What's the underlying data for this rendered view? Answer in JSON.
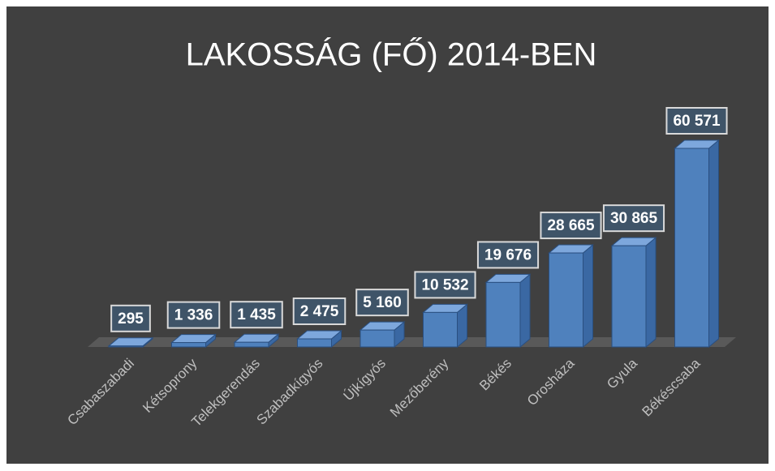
{
  "chart_data": {
    "type": "bar3d",
    "title": "LAKOSSÁG (FŐ) 2014-BEN",
    "categories": [
      "Csabaszabadi",
      "Kétsoprony",
      "Telekgerendás",
      "Szabadkígyós",
      "Újkígyós",
      "Mezőberény",
      "Békés",
      "Orosháza",
      "Gyula",
      "Békéscsaba"
    ],
    "values": [
      295,
      1336,
      1435,
      2475,
      5160,
      10532,
      19676,
      28665,
      30865,
      60571
    ],
    "value_labels": [
      "295",
      "1 336",
      "1 435",
      "2 475",
      "5 160",
      "10 532",
      "19 676",
      "28 665",
      "30 865",
      "60 571"
    ],
    "color": "#4f81bd"
  }
}
